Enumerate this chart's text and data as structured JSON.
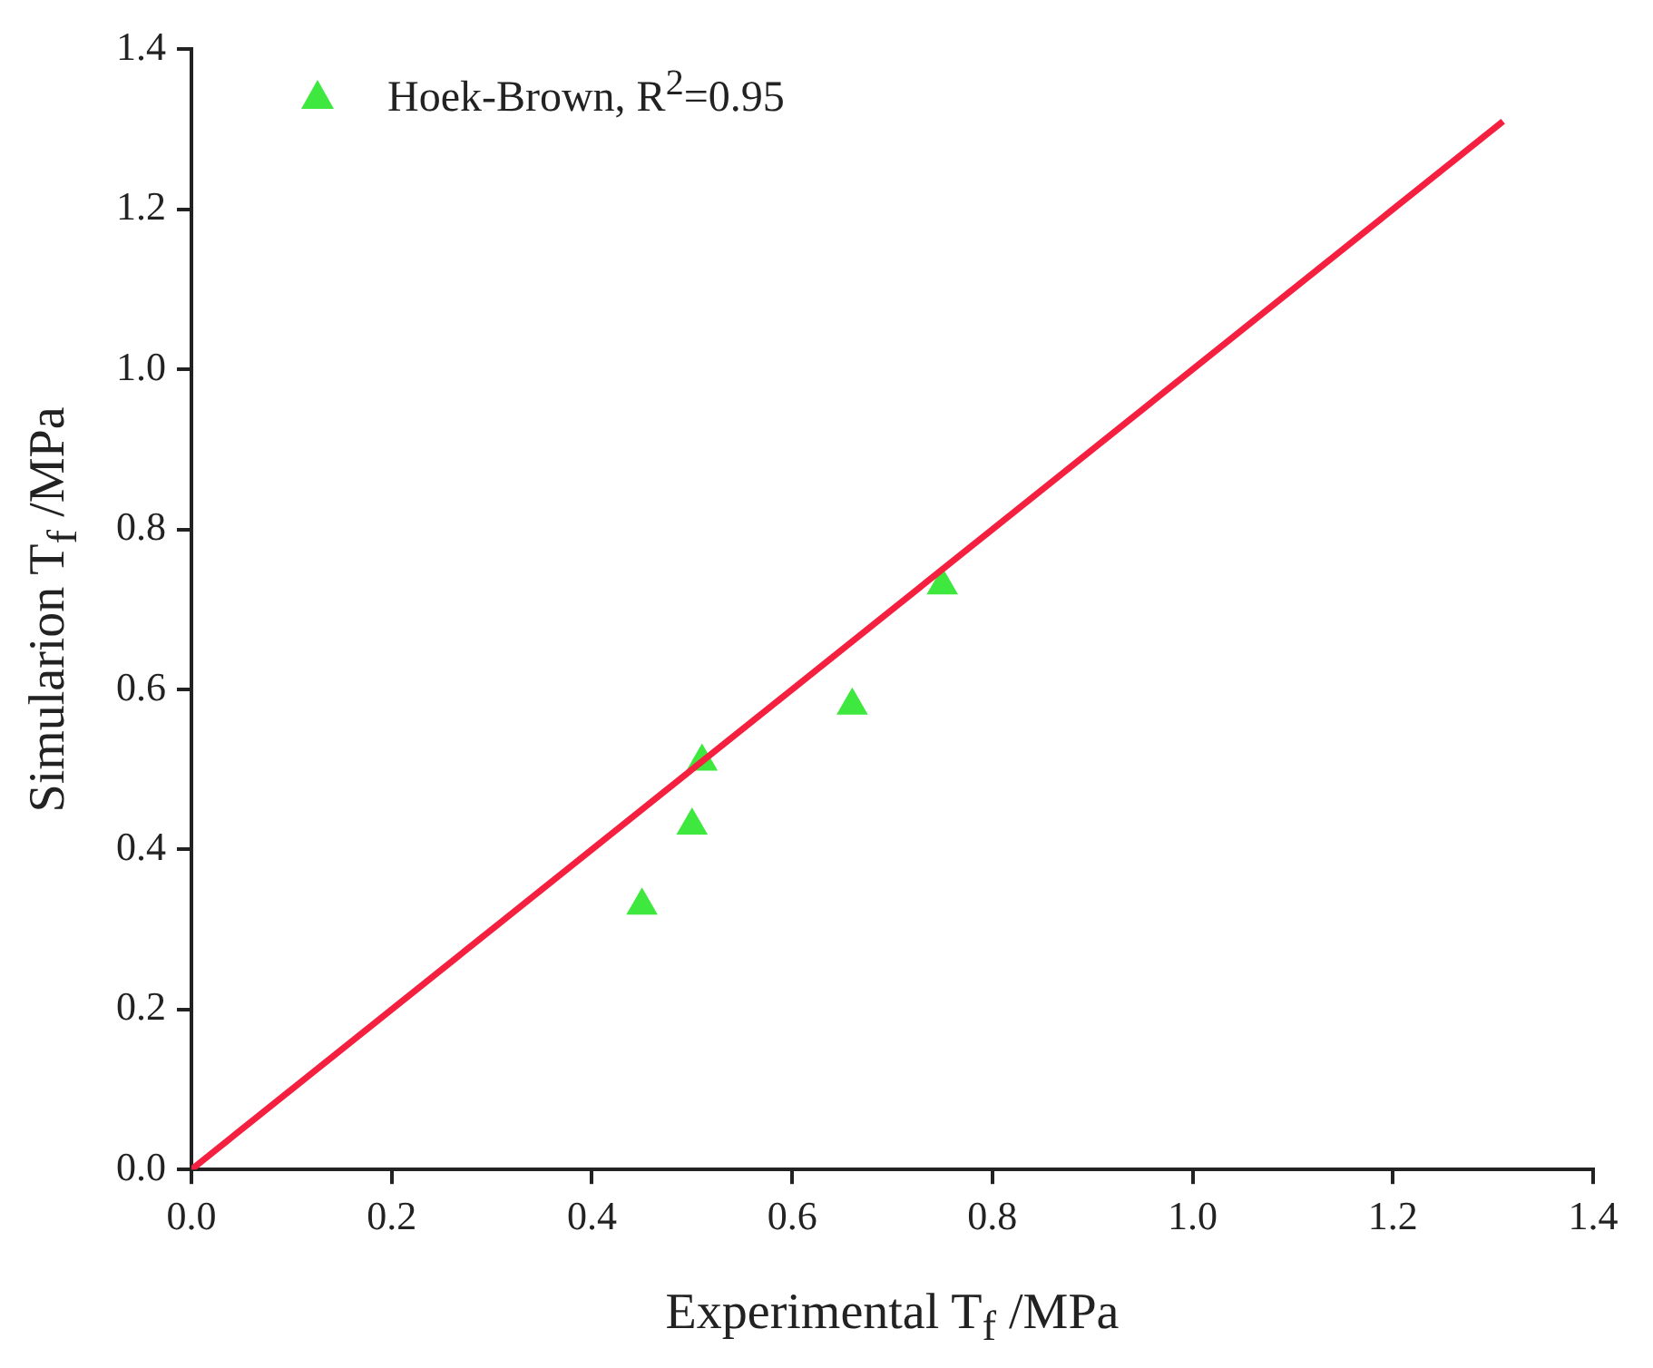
{
  "chart_data": {
    "type": "scatter",
    "xlabel": "Experimental T$_{f}$ /MPa",
    "ylabel": "Simularion T$_{f}$ /MPa",
    "xlim": [
      0,
      1.4
    ],
    "ylim": [
      0,
      1.4
    ],
    "xticks": [
      {
        "value": 0,
        "label": "0.0"
      },
      0.2,
      0.4,
      0.6,
      0.8,
      {
        "value": 1,
        "label": "1.0"
      },
      1.2,
      1.4
    ],
    "yticks": [
      {
        "value": 0,
        "label": "0.0"
      },
      0.2,
      0.4,
      0.6,
      0.8,
      {
        "value": 1,
        "label": "1.0"
      },
      1.2,
      1.4
    ],
    "grid": false,
    "legend": "top left",
    "marker": "triangle",
    "series": [
      {
        "name": "Hoek-Brown, R$^{2}$=0.95",
        "color": "#3ee83e",
        "x": [
          0.45,
          0.5,
          0.51,
          0.66,
          0.75
        ],
        "values": [
          0.33,
          0.43,
          0.51,
          0.58,
          0.73
        ]
      },
      {
        "type": "line",
        "color": "#f5203f",
        "x": [
          0,
          1.31
        ],
        "values": [
          0,
          1.31
        ],
        "line_style": "solid",
        "marker": "none"
      }
    ]
  }
}
